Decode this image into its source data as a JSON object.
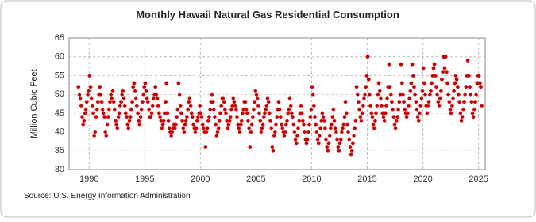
{
  "chart_data": {
    "type": "scatter",
    "title": "Monthly Hawaii Natural Gas Residential Consumption",
    "y_label": "Million Cubic Feet",
    "source": "Source: U.S. Energy Information Administration",
    "color": "#cc0000",
    "grid": true,
    "xlim": [
      1988.2,
      2025.6
    ],
    "xticks": [
      1990,
      1995,
      2000,
      2005,
      2010,
      2015,
      2020,
      2025
    ],
    "ylim": [
      30,
      65
    ],
    "yticks": [
      30,
      35,
      40,
      45,
      50,
      55,
      60,
      65
    ],
    "x": [
      1989.04,
      1989.13,
      1989.21,
      1989.29,
      1989.38,
      1989.46,
      1989.54,
      1989.63,
      1989.71,
      1989.79,
      1989.88,
      1989.96,
      1990.04,
      1990.13,
      1990.21,
      1990.29,
      1990.38,
      1990.46,
      1990.54,
      1990.63,
      1990.71,
      1990.79,
      1990.88,
      1990.96,
      1991.04,
      1991.13,
      1991.21,
      1991.29,
      1991.38,
      1991.46,
      1991.54,
      1991.63,
      1991.71,
      1991.79,
      1991.88,
      1991.96,
      1992.04,
      1992.13,
      1992.21,
      1992.29,
      1992.38,
      1992.46,
      1992.54,
      1992.63,
      1992.71,
      1992.79,
      1992.88,
      1992.96,
      1993.04,
      1993.13,
      1993.21,
      1993.29,
      1993.38,
      1993.46,
      1993.54,
      1993.63,
      1993.71,
      1993.79,
      1993.88,
      1993.96,
      1994.04,
      1994.13,
      1994.21,
      1994.29,
      1994.38,
      1994.46,
      1994.54,
      1994.63,
      1994.71,
      1994.79,
      1994.88,
      1994.96,
      1995.04,
      1995.13,
      1995.21,
      1995.29,
      1995.38,
      1995.46,
      1995.54,
      1995.63,
      1995.71,
      1995.79,
      1995.88,
      1995.96,
      1996.04,
      1996.13,
      1996.21,
      1996.29,
      1996.38,
      1996.46,
      1996.54,
      1996.63,
      1996.71,
      1996.79,
      1996.88,
      1996.96,
      1997.04,
      1997.13,
      1997.21,
      1997.29,
      1997.38,
      1997.46,
      1997.54,
      1997.63,
      1997.71,
      1997.79,
      1997.88,
      1997.96,
      1998.04,
      1998.13,
      1998.21,
      1998.29,
      1998.38,
      1998.46,
      1998.54,
      1998.63,
      1998.71,
      1998.79,
      1998.88,
      1998.96,
      1999.04,
      1999.13,
      1999.21,
      1999.29,
      1999.38,
      1999.46,
      1999.54,
      1999.63,
      1999.71,
      1999.79,
      1999.88,
      1999.96,
      2000.04,
      2000.13,
      2000.21,
      2000.29,
      2000.38,
      2000.46,
      2000.54,
      2000.63,
      2000.71,
      2000.79,
      2000.88,
      2000.96,
      2001.04,
      2001.13,
      2001.21,
      2001.29,
      2001.38,
      2001.46,
      2001.54,
      2001.63,
      2001.71,
      2001.79,
      2001.88,
      2001.96,
      2002.04,
      2002.13,
      2002.21,
      2002.29,
      2002.38,
      2002.46,
      2002.54,
      2002.63,
      2002.71,
      2002.79,
      2002.88,
      2002.96,
      2003.04,
      2003.13,
      2003.21,
      2003.29,
      2003.38,
      2003.46,
      2003.54,
      2003.63,
      2003.71,
      2003.79,
      2003.88,
      2003.96,
      2004.04,
      2004.13,
      2004.21,
      2004.29,
      2004.38,
      2004.46,
      2004.54,
      2004.63,
      2004.71,
      2004.79,
      2004.88,
      2004.96,
      2005.04,
      2005.13,
      2005.21,
      2005.29,
      2005.38,
      2005.46,
      2005.54,
      2005.63,
      2005.71,
      2005.79,
      2005.88,
      2005.96,
      2006.04,
      2006.13,
      2006.21,
      2006.29,
      2006.38,
      2006.46,
      2006.54,
      2006.63,
      2006.71,
      2006.79,
      2006.88,
      2006.96,
      2007.04,
      2007.13,
      2007.21,
      2007.29,
      2007.38,
      2007.46,
      2007.54,
      2007.63,
      2007.71,
      2007.79,
      2007.88,
      2007.96,
      2008.04,
      2008.13,
      2008.21,
      2008.29,
      2008.38,
      2008.46,
      2008.54,
      2008.63,
      2008.71,
      2008.79,
      2008.88,
      2008.96,
      2009.04,
      2009.13,
      2009.21,
      2009.29,
      2009.38,
      2009.46,
      2009.54,
      2009.63,
      2009.71,
      2009.79,
      2009.88,
      2009.96,
      2010.04,
      2010.13,
      2010.21,
      2010.29,
      2010.38,
      2010.46,
      2010.54,
      2010.63,
      2010.71,
      2010.79,
      2010.88,
      2010.96,
      2011.04,
      2011.13,
      2011.21,
      2011.29,
      2011.38,
      2011.46,
      2011.54,
      2011.63,
      2011.71,
      2011.79,
      2011.88,
      2011.96,
      2012.04,
      2012.13,
      2012.21,
      2012.29,
      2012.38,
      2012.46,
      2012.54,
      2012.63,
      2012.71,
      2012.79,
      2012.88,
      2012.96,
      2013.04,
      2013.13,
      2013.21,
      2013.29,
      2013.38,
      2013.46,
      2013.54,
      2013.63,
      2013.71,
      2013.79,
      2013.88,
      2013.96,
      2014.04,
      2014.13,
      2014.21,
      2014.29,
      2014.38,
      2014.46,
      2014.54,
      2014.63,
      2014.71,
      2014.79,
      2014.88,
      2014.96,
      2015.04,
      2015.13,
      2015.21,
      2015.29,
      2015.38,
      2015.46,
      2015.54,
      2015.63,
      2015.71,
      2015.79,
      2015.88,
      2015.96,
      2016.04,
      2016.13,
      2016.21,
      2016.29,
      2016.38,
      2016.46,
      2016.54,
      2016.63,
      2016.71,
      2016.79,
      2016.88,
      2016.96,
      2017.04,
      2017.13,
      2017.21,
      2017.29,
      2017.38,
      2017.46,
      2017.54,
      2017.63,
      2017.71,
      2017.79,
      2017.88,
      2017.96,
      2018.04,
      2018.13,
      2018.21,
      2018.29,
      2018.38,
      2018.46,
      2018.54,
      2018.63,
      2018.71,
      2018.79,
      2018.88,
      2018.96,
      2019.04,
      2019.13,
      2019.21,
      2019.29,
      2019.38,
      2019.46,
      2019.54,
      2019.63,
      2019.71,
      2019.79,
      2019.88,
      2019.96,
      2020.04,
      2020.13,
      2020.21,
      2020.29,
      2020.38,
      2020.46,
      2020.54,
      2020.63,
      2020.71,
      2020.79,
      2020.88,
      2020.96,
      2021.04,
      2021.13,
      2021.21,
      2021.29,
      2021.38,
      2021.46,
      2021.54,
      2021.63,
      2021.71,
      2021.79,
      2021.88,
      2021.96,
      2022.04,
      2022.13,
      2022.21,
      2022.29,
      2022.38,
      2022.46,
      2022.54,
      2022.63,
      2022.71,
      2022.79,
      2022.88,
      2022.96,
      2023.04,
      2023.13,
      2023.21,
      2023.29,
      2023.38,
      2023.46,
      2023.54,
      2023.63,
      2023.71,
      2023.79,
      2023.88,
      2023.96,
      2024.04,
      2024.13,
      2024.21,
      2024.29,
      2024.38,
      2024.46,
      2024.54,
      2024.63,
      2024.71,
      2024.79,
      2024.88,
      2024.96,
      2025.04,
      2025.13,
      2025.21,
      2025.29
    ],
    "values": [
      52,
      50,
      49,
      47,
      44,
      42,
      43,
      45,
      46,
      48,
      50,
      51,
      55,
      52,
      49,
      47,
      45,
      39,
      40,
      44,
      46,
      48,
      50,
      52,
      50,
      48,
      46,
      45,
      44,
      40,
      39,
      42,
      44,
      46,
      48,
      50,
      49,
      51,
      48,
      46,
      43,
      42,
      41,
      44,
      45,
      47,
      48,
      50,
      51,
      49,
      47,
      45,
      44,
      42,
      41,
      43,
      44,
      46,
      48,
      52,
      53,
      51,
      49,
      47,
      45,
      43,
      42,
      44,
      46,
      48,
      50,
      52,
      53,
      51,
      49,
      48,
      46,
      44,
      44,
      45,
      47,
      49,
      50,
      52,
      50,
      49,
      47,
      45,
      44,
      43,
      41,
      42,
      43,
      45,
      48,
      53,
      45,
      43,
      41,
      40,
      39,
      40,
      41,
      42,
      41,
      42,
      44,
      46,
      53,
      50,
      47,
      45,
      43,
      41,
      40,
      42,
      43,
      44,
      46,
      48,
      49,
      47,
      45,
      44,
      42,
      41,
      40,
      41,
      43,
      44,
      45,
      47,
      45,
      44,
      42,
      41,
      40,
      36,
      40,
      41,
      43,
      44,
      46,
      48,
      50,
      48,
      46,
      44,
      42,
      39,
      40,
      41,
      43,
      45,
      47,
      49,
      49,
      48,
      46,
      45,
      43,
      41,
      42,
      43,
      44,
      46,
      47,
      49,
      48,
      47,
      46,
      44,
      42,
      41,
      40,
      42,
      43,
      45,
      46,
      48,
      48,
      46,
      45,
      43,
      41,
      36,
      40,
      42,
      44,
      46,
      48,
      51,
      50,
      49,
      47,
      45,
      43,
      40,
      41,
      42,
      44,
      45,
      46,
      47,
      49,
      48,
      45,
      43,
      41,
      36,
      35,
      39,
      40,
      42,
      44,
      46,
      48,
      46,
      44,
      42,
      41,
      40,
      39,
      40,
      42,
      43,
      45,
      46,
      49,
      47,
      45,
      44,
      42,
      40,
      38,
      37,
      39,
      41,
      43,
      45,
      47,
      45,
      43,
      42,
      40,
      38,
      37,
      38,
      40,
      42,
      44,
      46,
      52,
      50,
      47,
      44,
      42,
      40,
      38,
      37,
      39,
      41,
      43,
      45,
      44,
      43,
      41,
      38,
      36,
      35,
      37,
      39,
      41,
      42,
      44,
      46,
      43,
      41,
      40,
      38,
      36,
      35,
      37,
      38,
      40,
      41,
      42,
      44,
      48,
      45,
      42,
      40,
      38,
      36,
      34,
      35,
      37,
      39,
      41,
      43,
      52,
      50,
      48,
      46,
      44,
      43,
      45,
      47,
      49,
      50,
      52,
      55,
      60,
      54,
      50,
      47,
      45,
      44,
      42,
      41,
      43,
      45,
      47,
      50,
      53,
      51,
      49,
      47,
      45,
      44,
      43,
      45,
      47,
      49,
      52,
      58,
      52,
      50,
      48,
      46,
      44,
      42,
      41,
      43,
      44,
      46,
      48,
      50,
      58,
      53,
      50,
      48,
      46,
      45,
      44,
      45,
      47,
      49,
      51,
      53,
      58,
      55,
      52,
      50,
      48,
      46,
      44,
      43,
      45,
      47,
      49,
      51,
      57,
      53,
      50,
      47,
      45,
      47,
      48,
      50,
      51,
      53,
      55,
      57,
      58,
      55,
      52,
      50,
      48,
      47,
      49,
      51,
      54,
      56,
      60,
      57,
      60,
      56,
      53,
      50,
      48,
      46,
      45,
      47,
      49,
      51,
      53,
      55,
      54,
      52,
      50,
      48,
      45,
      43,
      44,
      46,
      48,
      50,
      52,
      55,
      59,
      55,
      52,
      50,
      48,
      45,
      44,
      46,
      48,
      50,
      53,
      55,
      55,
      53,
      52,
      47
    ]
  }
}
